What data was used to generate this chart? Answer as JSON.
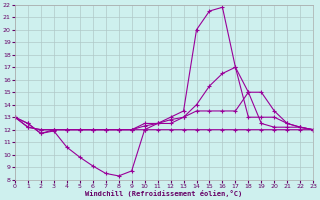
{
  "xlabel": "Windchill (Refroidissement éolien,°C)",
  "bg_color": "#cef0ee",
  "grid_color": "#b0c8c8",
  "line_color": "#990099",
  "xlim": [
    0,
    23
  ],
  "ylim": [
    8,
    22
  ],
  "xticks": [
    0,
    1,
    2,
    3,
    4,
    5,
    6,
    7,
    8,
    9,
    10,
    11,
    12,
    13,
    14,
    15,
    16,
    17,
    18,
    19,
    20,
    21,
    22,
    23
  ],
  "yticks": [
    8,
    9,
    10,
    11,
    12,
    13,
    14,
    15,
    16,
    17,
    18,
    19,
    20,
    21,
    22
  ],
  "line1_x": [
    0,
    1,
    2,
    3,
    4,
    5,
    6,
    7,
    8,
    9,
    10,
    11,
    12,
    13,
    14,
    15,
    16,
    17,
    18,
    19,
    20,
    21,
    22,
    23
  ],
  "line1_y": [
    13.0,
    12.5,
    11.7,
    11.9,
    10.6,
    9.8,
    9.1,
    8.5,
    8.3,
    8.7,
    12.0,
    12.5,
    12.5,
    13.0,
    13.5,
    13.5,
    13.5,
    13.5,
    15.0,
    15.0,
    13.5,
    12.5,
    12.2,
    12.0
  ],
  "line2_x": [
    0,
    1,
    2,
    3,
    4,
    5,
    6,
    7,
    8,
    9,
    10,
    11,
    12,
    13,
    14,
    15,
    16,
    17,
    18,
    19,
    20,
    21,
    22,
    23
  ],
  "line2_y": [
    13.0,
    12.5,
    11.7,
    12.0,
    12.0,
    12.0,
    12.0,
    12.0,
    12.0,
    12.0,
    12.5,
    12.5,
    13.0,
    13.5,
    20.0,
    21.5,
    21.8,
    17.0,
    13.0,
    13.0,
    13.0,
    12.5,
    12.2,
    12.0
  ],
  "line3_x": [
    0,
    1,
    2,
    3,
    4,
    5,
    6,
    7,
    8,
    9,
    10,
    11,
    12,
    13,
    14,
    15,
    16,
    17,
    18,
    19,
    20,
    21,
    22,
    23
  ],
  "line3_y": [
    13.0,
    12.2,
    12.0,
    12.0,
    12.0,
    12.0,
    12.0,
    12.0,
    12.0,
    12.0,
    12.0,
    12.0,
    12.0,
    12.0,
    12.0,
    12.0,
    12.0,
    12.0,
    12.0,
    12.0,
    12.0,
    12.0,
    12.0,
    12.0
  ],
  "line4_x": [
    0,
    1,
    2,
    3,
    4,
    5,
    6,
    7,
    8,
    9,
    10,
    11,
    12,
    13,
    14,
    15,
    16,
    17,
    18,
    19,
    20,
    21,
    22,
    23
  ],
  "line4_y": [
    13.0,
    12.2,
    12.0,
    12.0,
    12.0,
    12.0,
    12.0,
    12.0,
    12.0,
    12.0,
    12.3,
    12.5,
    12.8,
    13.0,
    14.0,
    15.5,
    16.5,
    17.0,
    15.0,
    12.5,
    12.2,
    12.2,
    12.2,
    12.0
  ]
}
